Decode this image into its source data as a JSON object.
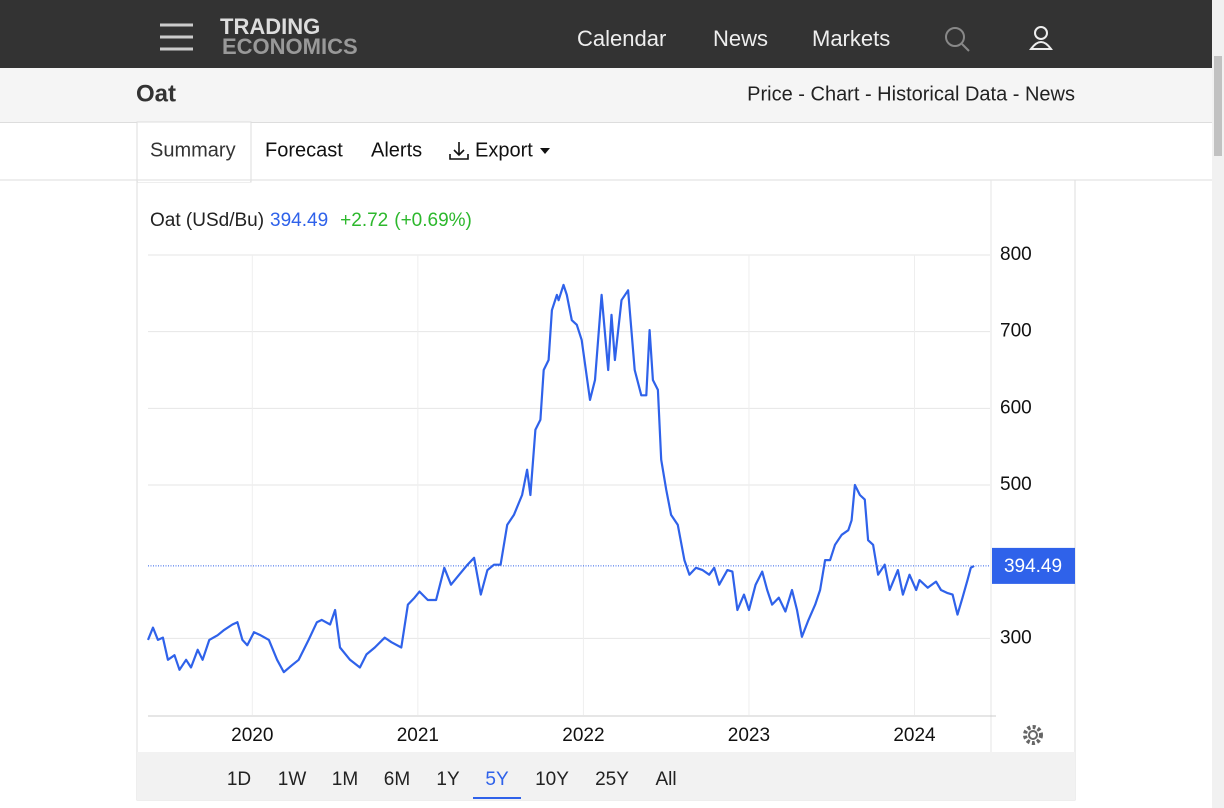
{
  "nav": {
    "logo_top": "TRADING",
    "logo_bottom": "ECONOMICS",
    "links": [
      "Calendar",
      "News",
      "Markets"
    ]
  },
  "header": {
    "title": "Oat",
    "links": "Price - Chart - Historical Data - News"
  },
  "tabs": [
    "Summary",
    "Forecast",
    "Alerts",
    "Export"
  ],
  "ranges": [
    "1D",
    "1W",
    "1M",
    "6M",
    "1Y",
    "5Y",
    "10Y",
    "25Y",
    "All"
  ],
  "active_range": 5,
  "chart_data": {
    "type": "line",
    "title": "Oat (USd/Bu)",
    "price": 394.49,
    "change": "+2.72",
    "change_pct": "(+0.69%)",
    "color": "#2f62ea",
    "grid": true,
    "x": [
      2019.37,
      2019.4,
      2019.43,
      2019.46,
      2019.49,
      2019.53,
      2019.56,
      2019.6,
      2019.63,
      2019.67,
      2019.7,
      2019.74,
      2019.79,
      2019.83,
      2019.88,
      2019.91,
      2019.94,
      2019.97,
      2020.01,
      2020.05,
      2020.1,
      2020.15,
      2020.19,
      2020.24,
      2020.28,
      2020.34,
      2020.39,
      2020.42,
      2020.47,
      2020.5,
      2020.53,
      2020.59,
      2020.65,
      2020.69,
      2020.74,
      2020.8,
      2020.84,
      2020.9,
      2020.94,
      2020.98,
      2021.01,
      2021.06,
      2021.11,
      2021.16,
      2021.2,
      2021.25,
      2021.3,
      2021.34,
      2021.38,
      2021.42,
      2021.46,
      2021.5,
      2021.54,
      2021.58,
      2021.63,
      2021.66,
      2021.68,
      2021.71,
      2021.74,
      2021.76,
      2021.79,
      2021.81,
      2021.84,
      2021.85,
      2021.88,
      2021.9,
      2021.93,
      2021.96,
      2021.99,
      2022.04,
      2022.07,
      2022.11,
      2022.15,
      2022.17,
      2022.19,
      2022.23,
      2022.27,
      2022.29,
      2022.31,
      2022.35,
      2022.38,
      2022.4,
      2022.42,
      2022.45,
      2022.47,
      2022.5,
      2022.53,
      2022.57,
      2022.61,
      2022.64,
      2022.68,
      2022.72,
      2022.76,
      2022.79,
      2022.82,
      2022.87,
      2022.9,
      2022.93,
      2022.97,
      2023.0,
      2023.04,
      2023.08,
      2023.11,
      2023.14,
      2023.18,
      2023.22,
      2023.26,
      2023.29,
      2023.32,
      2023.36,
      2023.4,
      2023.43,
      2023.46,
      2023.49,
      2023.52,
      2023.56,
      2023.6,
      2023.62,
      2023.64,
      2023.67,
      2023.7,
      2023.72,
      2023.75,
      2023.78,
      2023.82,
      2023.85,
      2023.9,
      2023.93,
      2023.97,
      2024.01,
      2024.03,
      2024.08,
      2024.13,
      2024.16,
      2024.2,
      2024.23,
      2024.26,
      2024.29,
      2024.32,
      2024.34,
      2024.36
    ],
    "values": [
      298,
      314,
      298,
      301,
      272,
      278,
      259,
      272,
      262,
      285,
      272,
      298,
      304,
      311,
      318,
      321,
      298,
      291,
      308,
      304,
      298,
      272,
      256,
      265,
      272,
      298,
      321,
      324,
      318,
      337,
      288,
      272,
      262,
      279,
      288,
      301,
      295,
      288,
      344,
      353,
      361,
      350,
      350,
      392,
      370,
      383,
      396,
      405,
      357,
      389,
      396,
      396,
      448,
      461,
      487,
      520,
      487,
      572,
      585,
      650,
      663,
      728,
      748,
      741,
      761,
      748,
      715,
      709,
      689,
      611,
      637,
      748,
      650,
      722,
      663,
      741,
      754,
      702,
      650,
      617,
      617,
      702,
      637,
      624,
      533,
      494,
      461,
      448,
      402,
      383,
      392,
      389,
      383,
      392,
      370,
      389,
      387,
      337,
      357,
      337,
      370,
      387,
      363,
      344,
      353,
      335,
      363,
      337,
      302,
      324,
      344,
      363,
      402,
      402,
      422,
      435,
      441,
      454,
      500,
      487,
      481,
      428,
      422,
      383,
      396,
      363,
      389,
      357,
      383,
      363,
      376,
      366,
      374,
      363,
      359,
      357,
      331,
      353,
      376,
      392,
      394.49
    ],
    "xlim": [
      2019.37,
      2024.45
    ],
    "xticks": [
      2020,
      2021,
      2022,
      2023,
      2024
    ],
    "ylim": [
      200,
      800
    ],
    "yticks": [
      300,
      500,
      600,
      700,
      800
    ]
  }
}
